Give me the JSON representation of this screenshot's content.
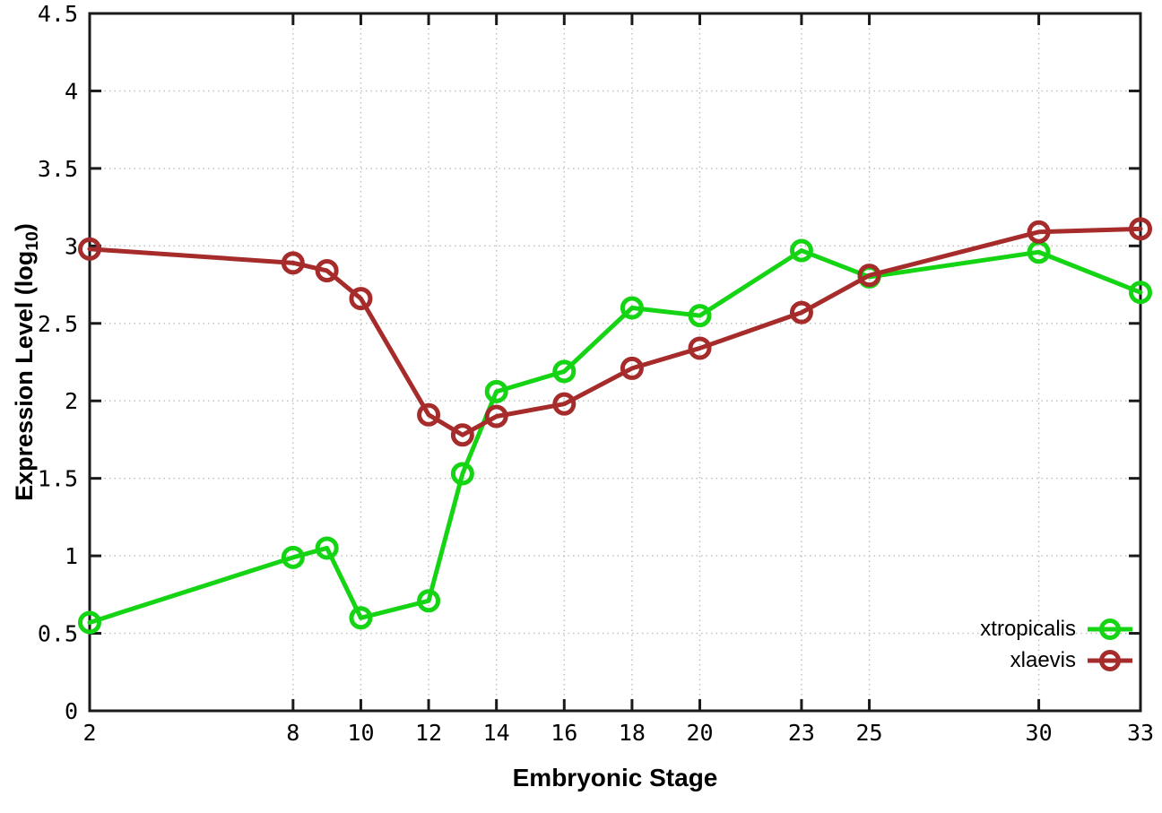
{
  "chart_data": {
    "type": "line",
    "title": "",
    "xlabel": "Embryonic Stage",
    "ylabel": "Expression Level (log10)",
    "ylabel_parts": {
      "pre": "Expression Level (log",
      "sub": "10",
      "post": ")"
    },
    "x": [
      2,
      8,
      9,
      10,
      12,
      13,
      14,
      16,
      18,
      20,
      23,
      25,
      30,
      33
    ],
    "series": [
      {
        "name": "xtropicalis",
        "color": "#14d414",
        "values": [
          0.57,
          0.99,
          1.05,
          0.6,
          0.71,
          1.53,
          2.06,
          2.19,
          2.6,
          2.55,
          2.97,
          2.8,
          2.96,
          2.7
        ]
      },
      {
        "name": "xlaevis",
        "color": "#a62b2b",
        "values": [
          2.98,
          2.89,
          2.84,
          2.66,
          1.91,
          1.78,
          1.9,
          1.98,
          2.21,
          2.34,
          2.57,
          2.81,
          3.09,
          3.11
        ]
      }
    ],
    "xlim": [
      2,
      33
    ],
    "ylim": [
      0,
      4.5
    ],
    "xticks": [
      2,
      8,
      10,
      12,
      14,
      16,
      18,
      20,
      23,
      25,
      30,
      33
    ],
    "xtick_labels": [
      "2",
      "8",
      "10",
      "12",
      "14",
      "16",
      "18",
      "20",
      "23",
      "25",
      "30",
      "33"
    ],
    "yticks": [
      0,
      0.5,
      1,
      1.5,
      2,
      2.5,
      3,
      3.5,
      4,
      4.5
    ],
    "ytick_labels": [
      "0",
      "0.5",
      "1",
      "1.5",
      "2",
      "2.5",
      "3",
      "3.5",
      "4",
      "4.5"
    ],
    "grid": true,
    "grid_style": "dotted",
    "legend_position": "inside-bottom-right",
    "marker": "open-circle",
    "colors": {
      "axis": "#1a1a1a",
      "grid": "#bdbdbd",
      "text": "#000000",
      "background": "#ffffff"
    }
  }
}
